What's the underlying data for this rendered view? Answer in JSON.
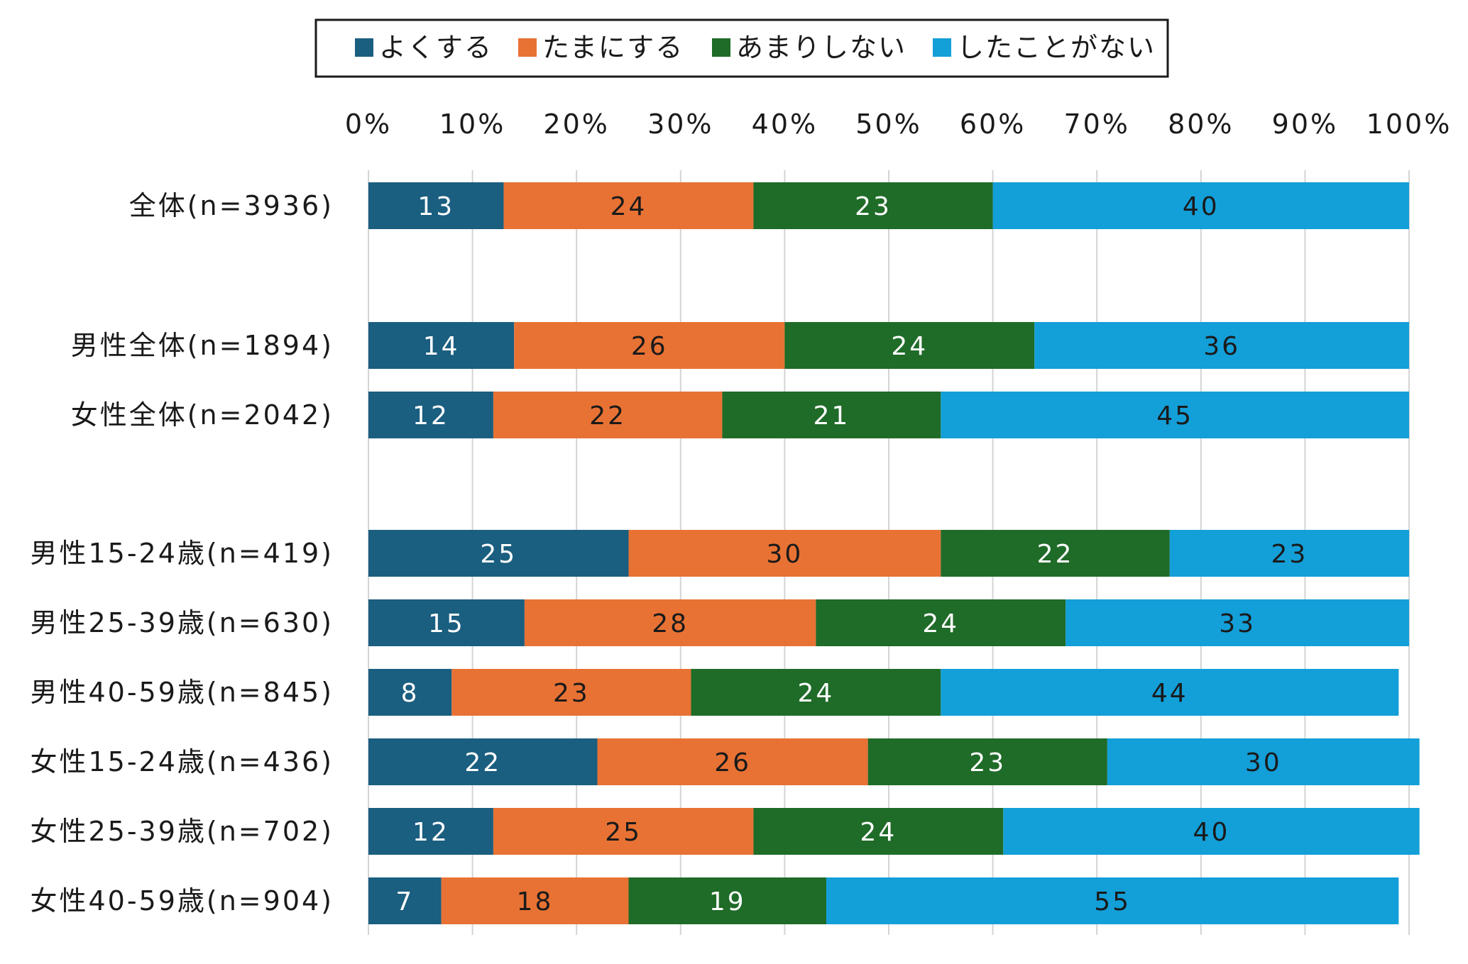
{
  "chart_data": {
    "type": "bar",
    "orientation": "horizontal",
    "stacked": true,
    "percent_scale": true,
    "xlim": [
      0,
      100
    ],
    "x_ticks": [
      "0%",
      "10%",
      "20%",
      "30%",
      "40%",
      "50%",
      "60%",
      "70%",
      "80%",
      "90%",
      "100%"
    ],
    "grid": "vertical",
    "legend_position": "top-center",
    "categories": [
      "全体(n=3936)",
      "男性全体(n=1894)",
      "女性全体(n=2042)",
      "男性15-24歳(n=419)",
      "男性25-39歳(n=630)",
      "男性40-59歳(n=845)",
      "女性15-24歳(n=436)",
      "女性25-39歳(n=702)",
      "女性40-59歳(n=904)"
    ],
    "category_groups": [
      [
        0
      ],
      [
        1,
        2
      ],
      [
        3,
        4,
        5,
        6,
        7,
        8
      ]
    ],
    "series": [
      {
        "name": "よくする",
        "color": "#1a5e80",
        "label_color": "#ffffff",
        "values": [
          13,
          14,
          12,
          25,
          15,
          8,
          22,
          12,
          7
        ]
      },
      {
        "name": "たまにする",
        "color": "#e87234",
        "label_color": "#1a1a1a",
        "values": [
          24,
          26,
          22,
          30,
          28,
          23,
          26,
          25,
          18
        ]
      },
      {
        "name": "あまりしない",
        "color": "#1f6b28",
        "label_color": "#ffffff",
        "values": [
          23,
          24,
          21,
          22,
          24,
          24,
          23,
          24,
          19
        ]
      },
      {
        "name": "したことがない",
        "color": "#139fd8",
        "label_color": "#1a1a1a",
        "values": [
          40,
          36,
          45,
          23,
          33,
          44,
          30,
          40,
          55
        ]
      }
    ]
  }
}
